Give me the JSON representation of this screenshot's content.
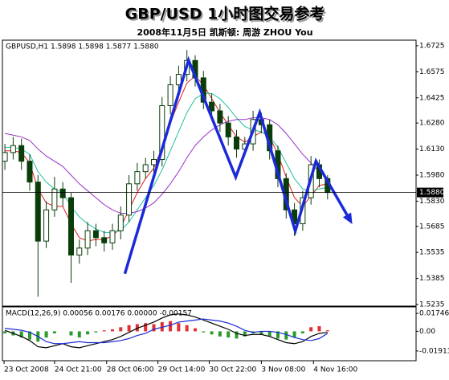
{
  "chart_data": [
    {
      "type": "candlestick",
      "title": "GBP/USD 1小时图交易参考",
      "subtitle": "2008年11月5日  凯斯顿: 周游 ZHOU You",
      "info": "GBPUSD,H1 1.5898 1.5898 1.5877 1.5880",
      "candles": {
        "up_color": "#ffffff",
        "down_color": "#0b3d0b",
        "edge_color": "#0b3d0b",
        "open": [
          1.606,
          1.611,
          1.615,
          1.606,
          1.594,
          1.56,
          1.578,
          1.59,
          1.585,
          1.552,
          1.556,
          1.566,
          1.562,
          1.559,
          1.566,
          1.575,
          1.593,
          1.6,
          1.604,
          1.607,
          1.638,
          1.65,
          1.656,
          1.664,
          1.654,
          1.64,
          1.635,
          1.628,
          1.62,
          1.613,
          1.616,
          1.63,
          1.627,
          1.612,
          1.596,
          1.578,
          1.57,
          1.585,
          1.604,
          1.596
        ],
        "high": [
          1.616,
          1.62,
          1.619,
          1.61,
          1.598,
          1.583,
          1.597,
          1.594,
          1.588,
          1.561,
          1.571,
          1.57,
          1.566,
          1.57,
          1.58,
          1.598,
          1.605,
          1.608,
          1.612,
          1.643,
          1.655,
          1.661,
          1.67,
          1.667,
          1.658,
          1.645,
          1.639,
          1.632,
          1.624,
          1.62,
          1.635,
          1.634,
          1.63,
          1.615,
          1.599,
          1.582,
          1.589,
          1.609,
          1.607,
          1.598
        ],
        "low": [
          1.601,
          1.607,
          1.601,
          1.589,
          1.528,
          1.556,
          1.574,
          1.58,
          1.536,
          1.547,
          1.552,
          1.557,
          1.554,
          1.555,
          1.561,
          1.571,
          1.589,
          1.596,
          1.599,
          1.603,
          1.633,
          1.645,
          1.652,
          1.649,
          1.636,
          1.63,
          1.623,
          1.615,
          1.608,
          1.609,
          1.612,
          1.622,
          1.607,
          1.591,
          1.573,
          1.563,
          1.566,
          1.581,
          1.591,
          1.584
        ],
        "close": [
          1.611,
          1.615,
          1.606,
          1.594,
          1.56,
          1.578,
          1.59,
          1.585,
          1.552,
          1.556,
          1.566,
          1.562,
          1.559,
          1.566,
          1.575,
          1.593,
          1.6,
          1.604,
          1.607,
          1.638,
          1.65,
          1.656,
          1.664,
          1.654,
          1.64,
          1.635,
          1.628,
          1.62,
          1.613,
          1.616,
          1.63,
          1.627,
          1.612,
          1.596,
          1.578,
          1.57,
          1.585,
          1.604,
          1.596,
          1.588
        ]
      },
      "series": [
        {
          "color": "#e02020",
          "values": [
            1.612,
            1.612,
            1.611,
            1.605,
            1.59,
            1.582,
            1.58,
            1.58,
            1.57,
            1.562,
            1.56,
            1.561,
            1.561,
            1.563,
            1.568,
            1.578,
            1.588,
            1.596,
            1.602,
            1.614,
            1.628,
            1.64,
            1.651,
            1.655,
            1.65,
            1.642,
            1.634,
            1.627,
            1.62,
            1.617,
            1.62,
            1.623,
            1.62,
            1.61,
            1.597,
            1.585,
            1.58,
            1.586,
            1.592,
            1.593
          ]
        },
        {
          "color": "#20c0a0",
          "values": [
            1.614,
            1.614,
            1.613,
            1.61,
            1.6,
            1.594,
            1.59,
            1.588,
            1.58,
            1.574,
            1.57,
            1.567,
            1.565,
            1.565,
            1.566,
            1.571,
            1.578,
            1.585,
            1.592,
            1.601,
            1.612,
            1.623,
            1.634,
            1.642,
            1.645,
            1.645,
            1.642,
            1.637,
            1.631,
            1.626,
            1.624,
            1.623,
            1.62,
            1.614,
            1.605,
            1.596,
            1.59,
            1.589,
            1.59,
            1.591
          ]
        },
        {
          "color": "#9a30c8",
          "values": [
            1.622,
            1.621,
            1.62,
            1.618,
            1.613,
            1.609,
            1.606,
            1.603,
            1.598,
            1.593,
            1.589,
            1.585,
            1.581,
            1.578,
            1.576,
            1.576,
            1.577,
            1.579,
            1.582,
            1.587,
            1.593,
            1.6,
            1.608,
            1.615,
            1.62,
            1.624,
            1.627,
            1.629,
            1.63,
            1.63,
            1.631,
            1.631,
            1.63,
            1.627,
            1.622,
            1.616,
            1.61,
            1.605,
            1.6,
            1.596
          ]
        }
      ],
      "zigzag": {
        "color": "#1a2ad8",
        "x": [
          14.5,
          22.2,
          27.9,
          30.8,
          35.1,
          37.6,
          41.8
        ],
        "values": [
          1.5412,
          1.6642,
          1.5969,
          1.634,
          1.5658,
          1.6061,
          1.5714
        ]
      },
      "current_price": {
        "value": 1.588,
        "label": "1.5880"
      },
      "xlim": [
        -0.3,
        49.7
      ],
      "xticks": [
        {
          "value": -0.1,
          "label": "23 Oct 2008"
        },
        {
          "value": 6,
          "label": "24 Oct 21:00"
        },
        {
          "value": 12.3,
          "label": "28 Oct 06:00"
        },
        {
          "value": 18.5,
          "label": "29 Oct 14:00"
        },
        {
          "value": 24.7,
          "label": "30 Oct 22:00"
        },
        {
          "value": 31,
          "label": "3 Nov 08:00"
        },
        {
          "value": 37.3,
          "label": "4 Nov 16:00"
        }
      ],
      "ylim": [
        1.5226,
        1.6757
      ],
      "yticks": [
        1.6725,
        1.6575,
        1.6425,
        {
          "value": 1.628,
          "label": "1.6280"
        },
        {
          "value": 1.613,
          "label": "1.6130"
        },
        {
          "value": 1.598,
          "label": "1.5980"
        },
        {
          "value": 1.583,
          "label": "1.5830"
        },
        1.5685,
        1.5535,
        1.5385,
        1.5235
      ]
    },
    {
      "type": "macd",
      "info": "MACD(12,26,9) 0.00056 0.00176 0.00000 -0.00157",
      "histogram": {
        "positive_color": "#e03030",
        "negative_color": "#2a9a2a",
        "values": [
          -0.002,
          -0.004,
          -0.006,
          -0.008,
          -0.01,
          -0.006,
          -0.002,
          0.0,
          -0.004,
          -0.006,
          -0.003,
          -0.001,
          0.001,
          0.002,
          0.004,
          0.006,
          0.007,
          0.008,
          0.007,
          0.009,
          0.01,
          0.008,
          0.006,
          0.003,
          -0.001,
          -0.003,
          -0.005,
          -0.006,
          -0.007,
          -0.005,
          -0.002,
          -0.003,
          -0.005,
          -0.007,
          -0.008,
          -0.006,
          -0.002,
          0.004,
          0.005,
          0.001
        ]
      },
      "series": [
        {
          "color": "#000000",
          "values": [
            0.001,
            -0.002,
            -0.005,
            -0.009,
            -0.015,
            -0.016,
            -0.014,
            -0.012,
            -0.015,
            -0.016,
            -0.014,
            -0.012,
            -0.01,
            -0.008,
            -0.005,
            -0.001,
            0.003,
            0.006,
            0.009,
            0.013,
            0.016,
            0.017,
            0.016,
            0.014,
            0.011,
            0.008,
            0.005,
            0.002,
            -0.002,
            -0.004,
            -0.003,
            -0.003,
            -0.005,
            -0.008,
            -0.011,
            -0.012,
            -0.01,
            -0.005,
            -0.002,
            -0.001
          ]
        },
        {
          "color": "#1a2ad8",
          "values": [
            0.003,
            0.002,
            0.001,
            -0.001,
            -0.005,
            -0.01,
            -0.012,
            -0.012,
            -0.011,
            -0.01,
            -0.011,
            -0.011,
            -0.011,
            -0.01,
            -0.009,
            -0.007,
            -0.004,
            -0.002,
            0.002,
            0.004,
            0.006,
            0.009,
            0.01,
            0.011,
            0.012,
            0.011,
            0.01,
            0.008,
            0.005,
            0.001,
            -0.001,
            0.0,
            0.0,
            -0.001,
            -0.003,
            -0.006,
            -0.008,
            -0.009,
            -0.007,
            -0.002
          ]
        }
      ],
      "xlim": [
        -0.3,
        49.7
      ],
      "ylim": [
        -0.0286,
        0.0238
      ],
      "yticks": [
        0.01746,
        {
          "value": 0,
          "label": "0.00"
        },
        -0.01913
      ]
    }
  ]
}
